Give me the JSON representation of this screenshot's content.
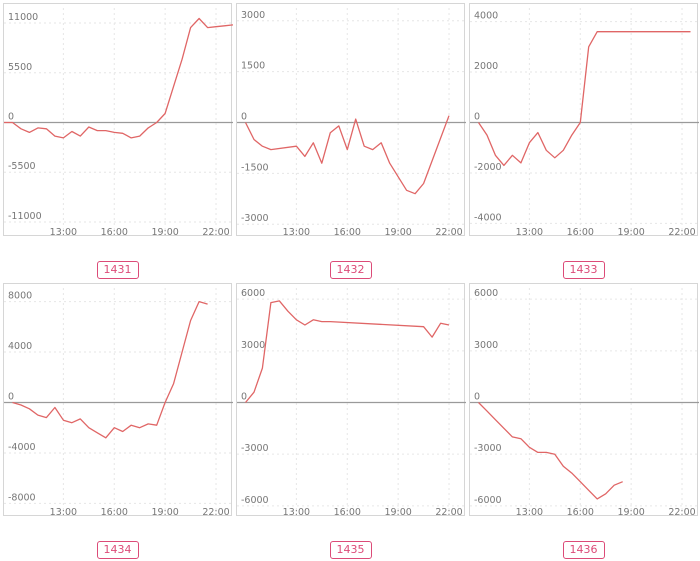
{
  "colors": {
    "series": "#e06666",
    "badge": "#dc4b78",
    "zero_line": "#9a9a9a",
    "grid": "#e6e6e6",
    "tick_text": "#777777",
    "border": "#d6d6d6"
  },
  "chart_data": [
    {
      "type": "line",
      "label": "1431",
      "y_ticks": [
        11000,
        5500,
        0,
        -5500,
        -11000
      ],
      "ylim": [
        -12000,
        12000
      ],
      "x_ticks": [
        "13:00",
        "16:00",
        "19:00",
        "22:00"
      ],
      "x_tick_hours": [
        13,
        16,
        19,
        22
      ],
      "xlim": [
        9.5,
        23.0
      ],
      "grid": true,
      "x": [
        9.5,
        10.0,
        10.5,
        11.0,
        11.5,
        12.0,
        12.5,
        13.0,
        13.5,
        14.0,
        14.5,
        15.0,
        15.5,
        16.0,
        16.5,
        17.0,
        17.5,
        18.0,
        18.5,
        19.0,
        19.5,
        20.0,
        20.5,
        21.0,
        21.5,
        22.0,
        22.5,
        23.0
      ],
      "y": [
        0,
        0,
        -700,
        -1100,
        -600,
        -700,
        -1500,
        -1700,
        -1000,
        -1500,
        -500,
        -900,
        -900,
        -1100,
        -1200,
        -1700,
        -1500,
        -600,
        0,
        1000,
        4000,
        7000,
        10500,
        11500,
        10500,
        10600,
        10700,
        10800
      ]
    },
    {
      "type": "line",
      "label": "1432",
      "y_ticks": [
        3000,
        1500,
        0,
        -1500,
        -3000
      ],
      "ylim": [
        -3200,
        3200
      ],
      "x_ticks": [
        "13:00",
        "16:00",
        "19:00",
        "22:00"
      ],
      "x_tick_hours": [
        13,
        16,
        19,
        22
      ],
      "xlim": [
        9.5,
        23.0
      ],
      "grid": true,
      "x": [
        10.0,
        10.5,
        11.0,
        11.5,
        13.0,
        13.5,
        14.0,
        14.5,
        15.0,
        15.5,
        16.0,
        16.5,
        17.0,
        17.5,
        18.0,
        18.5,
        19.5,
        20.0,
        20.5,
        22.0
      ],
      "y": [
        0,
        -500,
        -700,
        -800,
        -700,
        -1000,
        -600,
        -1200,
        -300,
        -100,
        -800,
        100,
        -700,
        -800,
        -600,
        -1200,
        -2000,
        -2100,
        -1800,
        200
      ]
    },
    {
      "type": "line",
      "label": "1433",
      "y_ticks": [
        4000,
        2000,
        0,
        -2000,
        -4000
      ],
      "ylim": [
        -4300,
        4300
      ],
      "x_ticks": [
        "13:00",
        "16:00",
        "19:00",
        "22:00"
      ],
      "x_tick_hours": [
        13,
        16,
        19,
        22
      ],
      "xlim": [
        9.5,
        23.0
      ],
      "grid": true,
      "x": [
        10.0,
        10.5,
        11.0,
        11.5,
        12.0,
        12.5,
        13.0,
        13.5,
        14.0,
        14.5,
        15.0,
        15.5,
        16.0,
        16.5,
        17.0,
        22.5
      ],
      "y": [
        0,
        -500,
        -1300,
        -1700,
        -1300,
        -1600,
        -800,
        -400,
        -1100,
        -1400,
        -1100,
        -500,
        0,
        3000,
        3600,
        3600
      ]
    },
    {
      "type": "line",
      "label": "1434",
      "y_ticks": [
        8000,
        4000,
        0,
        -4000,
        -8000
      ],
      "ylim": [
        -8600,
        8600
      ],
      "x_ticks": [
        "13:00",
        "16:00",
        "19:00",
        "22:00"
      ],
      "x_tick_hours": [
        13,
        16,
        19,
        22
      ],
      "xlim": [
        9.5,
        23.0
      ],
      "grid": true,
      "x": [
        10.0,
        10.5,
        11.0,
        11.5,
        12.0,
        12.5,
        13.0,
        13.5,
        14.0,
        14.5,
        15.0,
        15.5,
        16.0,
        16.5,
        17.0,
        17.5,
        18.0,
        18.5,
        19.0,
        19.5,
        20.0,
        20.5,
        21.0,
        21.5
      ],
      "y": [
        0,
        -200,
        -500,
        -1000,
        -1200,
        -400,
        -1400,
        -1600,
        -1300,
        -2000,
        -2400,
        -2800,
        -2000,
        -2300,
        -1800,
        -2000,
        -1700,
        -1800,
        0,
        1500,
        4000,
        6500,
        8000,
        7800
      ]
    },
    {
      "type": "line",
      "label": "1435",
      "y_ticks": [
        6000,
        3000,
        0,
        -3000,
        -6000
      ],
      "ylim": [
        -6300,
        6300
      ],
      "x_ticks": [
        "13:00",
        "16:00",
        "19:00",
        "22:00"
      ],
      "x_tick_hours": [
        13,
        16,
        19,
        22
      ],
      "xlim": [
        9.5,
        23.0
      ],
      "grid": true,
      "x": [
        10.0,
        10.5,
        11.0,
        11.5,
        12.0,
        12.5,
        13.0,
        13.5,
        14.0,
        14.5,
        15.0,
        20.5,
        21.0,
        21.5,
        22.0
      ],
      "y": [
        0,
        600,
        2000,
        5800,
        5900,
        5300,
        4800,
        4500,
        4800,
        4700,
        4700,
        4400,
        3800,
        4600,
        4500
      ]
    },
    {
      "type": "line",
      "label": "1436",
      "y_ticks": [
        6000,
        3000,
        0,
        -3000,
        -6000
      ],
      "ylim": [
        -6300,
        6300
      ],
      "x_ticks": [
        "13:00",
        "16:00",
        "19:00",
        "22:00"
      ],
      "x_tick_hours": [
        13,
        16,
        19,
        22
      ],
      "xlim": [
        9.5,
        23.0
      ],
      "grid": true,
      "x": [
        10.0,
        10.5,
        11.0,
        11.5,
        12.0,
        12.5,
        13.0,
        13.5,
        14.0,
        14.5,
        15.0,
        15.5,
        16.0,
        16.5,
        17.0,
        17.5,
        18.0,
        18.5
      ],
      "y": [
        0,
        -500,
        -1000,
        -1500,
        -2000,
        -2100,
        -2600,
        -2900,
        -2900,
        -3000,
        -3700,
        -4100,
        -4600,
        -5100,
        -5600,
        -5300,
        -4800,
        -4600
      ]
    }
  ]
}
